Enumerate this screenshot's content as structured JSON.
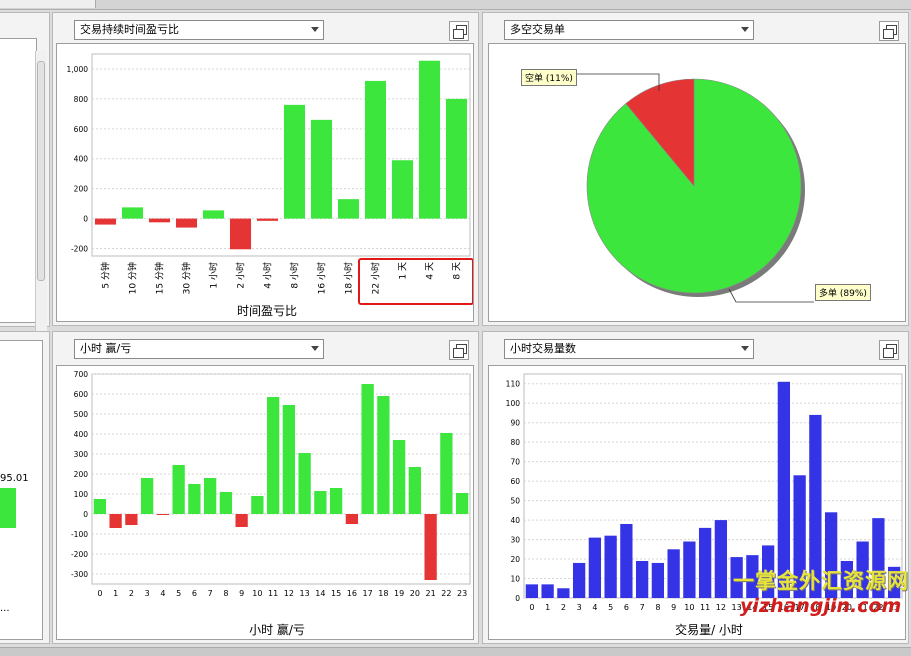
{
  "panels": {
    "duration": {
      "dropdown": "交易持续时间盈亏比",
      "xlabel": "时间盈亏比"
    },
    "longshort": {
      "dropdown": "多空交易单",
      "short_label": "空单 (11%)",
      "long_label": "多单 (89%)"
    },
    "hourly_pl": {
      "dropdown": "小时 赢/亏",
      "xlabel": "小时 赢/亏"
    },
    "hourly_count": {
      "dropdown": "小时交易量数",
      "xlabel": "交易量/ 小时"
    },
    "left_partial": {
      "value_label": "95.01",
      "ellipsis": "..."
    }
  },
  "watermark": {
    "line1": "一掌金外汇资源网",
    "line2": "yizhangjin.com"
  },
  "colors": {
    "positive": "#3de63d",
    "negative": "#e53434",
    "volume": "#3434e6",
    "highlight": "#e01818"
  },
  "chart_data": [
    {
      "id": "duration",
      "type": "bar",
      "categories": [
        "5 分钟",
        "10 分钟",
        "15 分钟",
        "30 分钟",
        "1 小时",
        "2 小时",
        "4 小时",
        "8 小时",
        "16 小时",
        "18 小时",
        "22 小时",
        "1 天",
        "4 天",
        "8 天"
      ],
      "values": [
        -40,
        75,
        -25,
        -60,
        55,
        -205,
        -15,
        760,
        660,
        130,
        920,
        390,
        1055,
        800
      ],
      "ylim": [
        -250,
        1100
      ],
      "yticks": [
        -200,
        0,
        200,
        400,
        600,
        800,
        1000
      ],
      "ytick_labels": [
        "-200",
        "0",
        "200",
        "400",
        "600",
        "800",
        "1,000"
      ],
      "xlabel": "时间盈亏比",
      "highlight_categories": [
        "22 小时",
        "1 天",
        "4 天",
        "8 天"
      ]
    },
    {
      "id": "longshort",
      "type": "pie",
      "labels": [
        "多单",
        "空单"
      ],
      "values": [
        89,
        11
      ]
    },
    {
      "id": "hourly_pl",
      "type": "bar",
      "categories": [
        "0",
        "1",
        "2",
        "3",
        "4",
        "5",
        "6",
        "7",
        "8",
        "9",
        "10",
        "11",
        "12",
        "13",
        "14",
        "15",
        "16",
        "17",
        "18",
        "19",
        "20",
        "21",
        "22",
        "23"
      ],
      "values": [
        75,
        -70,
        -55,
        180,
        -5,
        245,
        150,
        180,
        110,
        -65,
        90,
        585,
        545,
        305,
        115,
        130,
        -50,
        650,
        590,
        370,
        235,
        -330,
        405,
        105
      ],
      "ylim": [
        -350,
        700
      ],
      "yticks": [
        -300,
        -200,
        -100,
        0,
        100,
        200,
        300,
        400,
        500,
        600,
        700
      ],
      "xlabel": "小时 赢/亏"
    },
    {
      "id": "hourly_count",
      "type": "bar",
      "categories": [
        "0",
        "1",
        "2",
        "3",
        "4",
        "5",
        "6",
        "7",
        "8",
        "9",
        "10",
        "11",
        "12",
        "13",
        "14",
        "15",
        "16",
        "17",
        "18",
        "19",
        "20",
        "21",
        "22",
        "23"
      ],
      "values": [
        7,
        7,
        5,
        18,
        31,
        32,
        38,
        19,
        18,
        25,
        29,
        36,
        40,
        21,
        22,
        27,
        111,
        63,
        94,
        44,
        19,
        29,
        41,
        16
      ],
      "ylim": [
        0,
        115
      ],
      "yticks": [
        0,
        10,
        20,
        30,
        40,
        50,
        60,
        70,
        80,
        90,
        100,
        110
      ],
      "xlabel": "交易量/ 小时"
    }
  ]
}
